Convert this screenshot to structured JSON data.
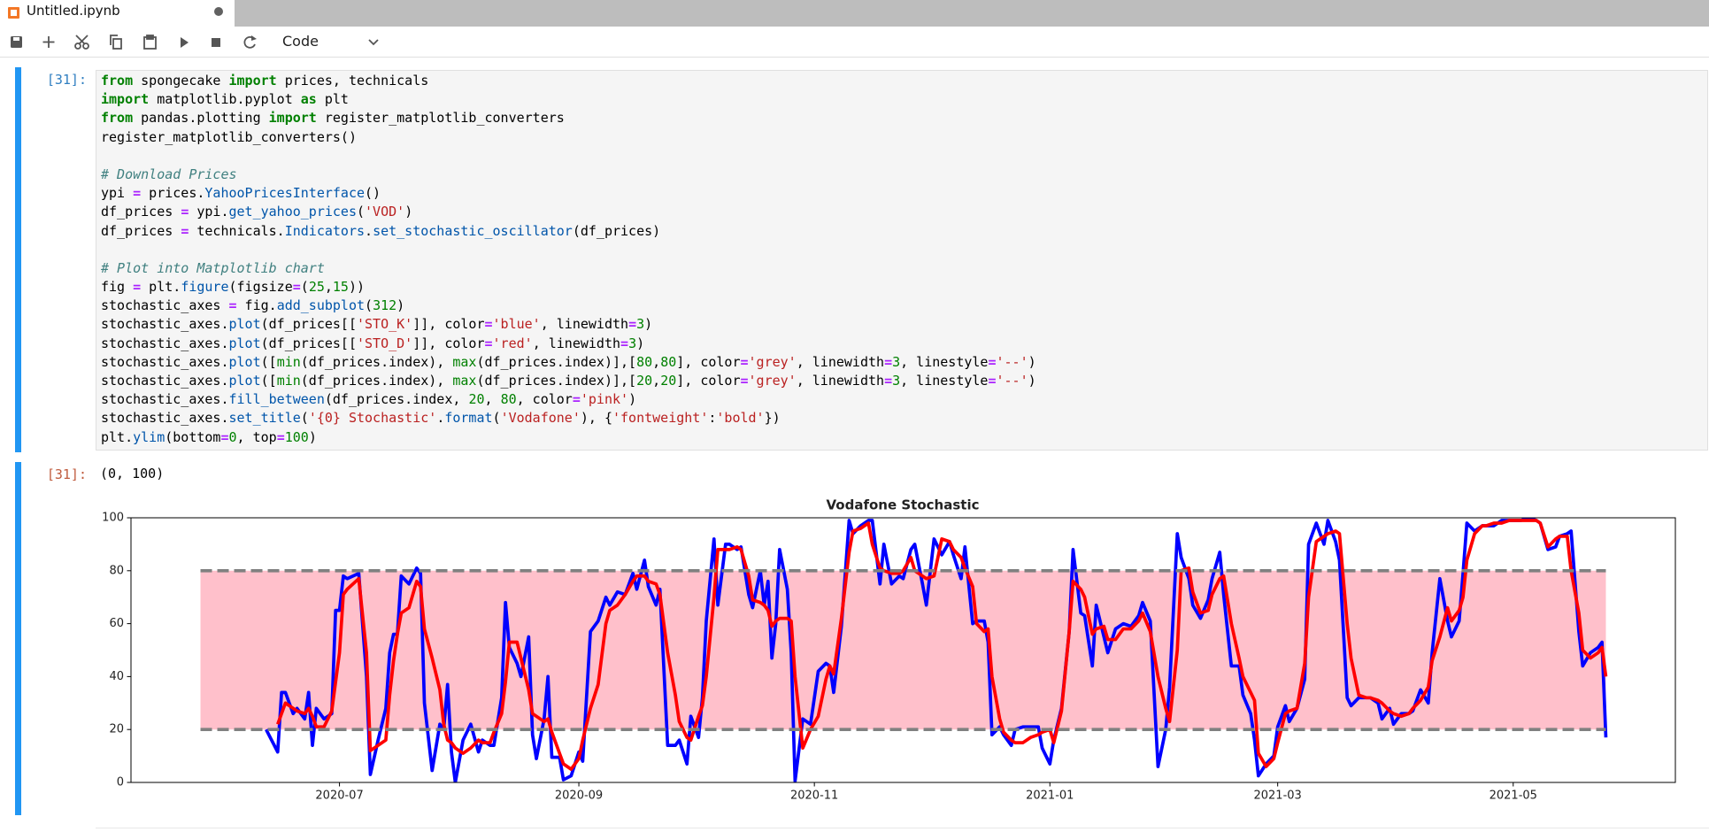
{
  "tab": {
    "title": "Untitled.ipynb"
  },
  "toolbar": {
    "cell_type": "Code"
  },
  "cell": {
    "prompt": "[31]:",
    "code": [
      [
        [
          "from",
          "k"
        ],
        [
          " spongecake ",
          "n"
        ],
        [
          "import",
          "k"
        ],
        [
          " prices, technicals",
          "n"
        ]
      ],
      [
        [
          "import",
          "k"
        ],
        [
          " matplotlib.pyplot ",
          "n"
        ],
        [
          "as",
          "k"
        ],
        [
          " plt",
          "n"
        ]
      ],
      [
        [
          "from",
          "k"
        ],
        [
          " pandas.plotting ",
          "n"
        ],
        [
          "import",
          "k"
        ],
        [
          " register_matplotlib_converters",
          "n"
        ]
      ],
      [
        [
          "register_matplotlib_converters()",
          "n"
        ]
      ],
      [],
      [
        [
          "# Download Prices",
          "c"
        ]
      ],
      [
        [
          "ypi ",
          "n"
        ],
        [
          "=",
          "o"
        ],
        [
          " prices.",
          "n"
        ],
        [
          "YahooPricesInterface",
          "f"
        ],
        [
          "()",
          "n"
        ]
      ],
      [
        [
          "df_prices ",
          "n"
        ],
        [
          "=",
          "o"
        ],
        [
          " ypi.",
          "n"
        ],
        [
          "get_yahoo_prices",
          "f"
        ],
        [
          "(",
          "n"
        ],
        [
          "'VOD'",
          "s"
        ],
        [
          ")",
          "n"
        ]
      ],
      [
        [
          "df_prices ",
          "n"
        ],
        [
          "=",
          "o"
        ],
        [
          " technicals.",
          "n"
        ],
        [
          "Indicators",
          "f"
        ],
        [
          ".",
          "n"
        ],
        [
          "set_stochastic_oscillator",
          "f"
        ],
        [
          "(df_prices)",
          "n"
        ]
      ],
      [],
      [
        [
          "# Plot into Matplotlib chart",
          "c"
        ]
      ],
      [
        [
          "fig ",
          "n"
        ],
        [
          "=",
          "o"
        ],
        [
          " plt.",
          "n"
        ],
        [
          "figure",
          "f"
        ],
        [
          "(figsize",
          "n"
        ],
        [
          "=",
          "o"
        ],
        [
          "(",
          "n"
        ],
        [
          "25",
          "m"
        ],
        [
          ",",
          "n"
        ],
        [
          "15",
          "m"
        ],
        [
          "))",
          "n"
        ]
      ],
      [
        [
          "stochastic_axes ",
          "n"
        ],
        [
          "=",
          "o"
        ],
        [
          " fig.",
          "n"
        ],
        [
          "add_subplot",
          "f"
        ],
        [
          "(",
          "n"
        ],
        [
          "312",
          "m"
        ],
        [
          ")",
          "n"
        ]
      ],
      [
        [
          "stochastic_axes.",
          "n"
        ],
        [
          "plot",
          "f"
        ],
        [
          "(df_prices[[",
          "n"
        ],
        [
          "'STO_K'",
          "s"
        ],
        [
          "]], color",
          "n"
        ],
        [
          "=",
          "o"
        ],
        [
          "'blue'",
          "s"
        ],
        [
          ", linewidth",
          "n"
        ],
        [
          "=",
          "o"
        ],
        [
          "3",
          "m"
        ],
        [
          ")",
          "n"
        ]
      ],
      [
        [
          "stochastic_axes.",
          "n"
        ],
        [
          "plot",
          "f"
        ],
        [
          "(df_prices[[",
          "n"
        ],
        [
          "'STO_D'",
          "s"
        ],
        [
          "]], color",
          "n"
        ],
        [
          "=",
          "o"
        ],
        [
          "'red'",
          "s"
        ],
        [
          ", linewidth",
          "n"
        ],
        [
          "=",
          "o"
        ],
        [
          "3",
          "m"
        ],
        [
          ")",
          "n"
        ]
      ],
      [
        [
          "stochastic_axes.",
          "n"
        ],
        [
          "plot",
          "f"
        ],
        [
          "([",
          "n"
        ],
        [
          "min",
          "b"
        ],
        [
          "(df_prices.index), ",
          "n"
        ],
        [
          "max",
          "b"
        ],
        [
          "(df_prices.index)],[",
          "n"
        ],
        [
          "80",
          "m"
        ],
        [
          ",",
          "n"
        ],
        [
          "80",
          "m"
        ],
        [
          "], color",
          "n"
        ],
        [
          "=",
          "o"
        ],
        [
          "'grey'",
          "s"
        ],
        [
          ", linewidth",
          "n"
        ],
        [
          "=",
          "o"
        ],
        [
          "3",
          "m"
        ],
        [
          ", linestyle",
          "n"
        ],
        [
          "=",
          "o"
        ],
        [
          "'--'",
          "s"
        ],
        [
          ")",
          "n"
        ]
      ],
      [
        [
          "stochastic_axes.",
          "n"
        ],
        [
          "plot",
          "f"
        ],
        [
          "([",
          "n"
        ],
        [
          "min",
          "b"
        ],
        [
          "(df_prices.index), ",
          "n"
        ],
        [
          "max",
          "b"
        ],
        [
          "(df_prices.index)],[",
          "n"
        ],
        [
          "20",
          "m"
        ],
        [
          ",",
          "n"
        ],
        [
          "20",
          "m"
        ],
        [
          "], color",
          "n"
        ],
        [
          "=",
          "o"
        ],
        [
          "'grey'",
          "s"
        ],
        [
          ", linewidth",
          "n"
        ],
        [
          "=",
          "o"
        ],
        [
          "3",
          "m"
        ],
        [
          ", linestyle",
          "n"
        ],
        [
          "=",
          "o"
        ],
        [
          "'--'",
          "s"
        ],
        [
          ")",
          "n"
        ]
      ],
      [
        [
          "stochastic_axes.",
          "n"
        ],
        [
          "fill_between",
          "f"
        ],
        [
          "(df_prices.index, ",
          "n"
        ],
        [
          "20",
          "m"
        ],
        [
          ", ",
          "n"
        ],
        [
          "80",
          "m"
        ],
        [
          ", color",
          "n"
        ],
        [
          "=",
          "o"
        ],
        [
          "'pink'",
          "s"
        ],
        [
          ")",
          "n"
        ]
      ],
      [
        [
          "stochastic_axes.",
          "n"
        ],
        [
          "set_title",
          "f"
        ],
        [
          "(",
          "n"
        ],
        [
          "'{0} Stochastic'",
          "s"
        ],
        [
          ".",
          "n"
        ],
        [
          "format",
          "f"
        ],
        [
          "(",
          "n"
        ],
        [
          "'Vodafone'",
          "s"
        ],
        [
          "), {",
          "n"
        ],
        [
          "'fontweight'",
          "s"
        ],
        [
          ":",
          "n"
        ],
        [
          "'bold'",
          "s"
        ],
        [
          "})",
          "n"
        ]
      ],
      [
        [
          "plt.",
          "n"
        ],
        [
          "ylim",
          "f"
        ],
        [
          "(bottom",
          "n"
        ],
        [
          "=",
          "o"
        ],
        [
          "0",
          "m"
        ],
        [
          ", top",
          "n"
        ],
        [
          "=",
          "o"
        ],
        [
          "100",
          "m"
        ],
        [
          ")",
          "n"
        ]
      ]
    ],
    "output_prompt": "[31]:",
    "output_text": "(0, 100)"
  },
  "chart_data": {
    "type": "line",
    "title": "Vodafone Stochastic",
    "x": [
      18425,
      18428,
      18429,
      18430,
      18432,
      18433,
      18435,
      18436,
      18437,
      18438,
      18440,
      18442,
      18443,
      18444,
      18445,
      18446,
      18449,
      18451,
      18452,
      18454,
      18456,
      18457,
      18458,
      18459,
      18460,
      18462,
      18464,
      18465,
      18466,
      18468,
      18470,
      18471,
      18472,
      18473,
      18474,
      18476,
      18478,
      18480,
      18481,
      18483,
      18484,
      18486,
      18487,
      18488,
      18490,
      18491,
      18493,
      18494,
      18495,
      18497,
      18498,
      18499,
      18501,
      18502,
      18504,
      18506,
      18507,
      18509,
      18511,
      18513,
      18514,
      18516,
      18518,
      18520,
      18521,
      18523,
      18524,
      18526,
      18527,
      18529,
      18531,
      18532,
      18534,
      18535,
      18537,
      18538,
      18539,
      18541,
      18542,
      18544,
      18545,
      18547,
      18548,
      18550,
      18551,
      18553,
      18554,
      18555,
      18556,
      18557,
      18558,
      18560,
      18561,
      18562,
      18564,
      18566,
      18568,
      18570,
      18571,
      18572,
      18574,
      18576,
      18577,
      18579,
      18581,
      18582,
      18584,
      18585,
      18587,
      18589,
      18590,
      18592,
      18593,
      18595,
      18596,
      18598,
      18600,
      18602,
      18603,
      18605,
      18606,
      18608,
      18609,
      18611,
      18612,
      18613,
      18615,
      18616,
      18618,
      18619,
      18621,
      18623,
      18625,
      18626,
      18628,
      18629,
      18631,
      18633,
      18634,
      18636,
      18637,
      18639,
      18640,
      18642,
      18643,
      18645,
      18647,
      18649,
      18651,
      18652,
      18654,
      18656,
      18658,
      18659,
      18661,
      18662,
      18664,
      18665,
      18667,
      18669,
      18670,
      18672,
      18673,
      18675,
      18677,
      18678,
      18680,
      18681,
      18682,
      18684,
      18686,
      18687,
      18689,
      18690,
      18692,
      18694,
      18695,
      18697,
      18699,
      18700,
      18702,
      18703,
      18705,
      18706,
      18708,
      18710,
      18711,
      18713,
      18714,
      18716,
      18717,
      18719,
      18721,
      18722,
      18724,
      18726,
      18727,
      18729,
      18731,
      18732,
      18734,
      18735,
      18736,
      18738,
      18740,
      18741,
      18743,
      18745,
      18747,
      18748,
      18750,
      18752,
      18754,
      18755,
      18757,
      18759,
      18760,
      18762,
      18763,
      18765,
      18766,
      18768,
      18770,
      18771,
      18772
    ],
    "series": [
      {
        "color": "blue",
        "values": [
          20,
          11.5,
          34,
          34,
          26,
          28,
          24,
          34,
          14,
          28,
          24,
          26,
          65,
          65,
          78,
          77,
          79,
          40,
          3,
          16,
          28,
          49,
          56,
          56,
          78,
          75,
          81,
          79,
          30,
          4.5,
          22,
          20,
          37,
          11.5,
          0,
          16,
          22,
          11.5,
          16,
          14,
          14,
          32,
          68,
          51,
          45,
          40,
          55,
          18,
          9,
          24,
          40,
          9.5,
          9.5,
          1,
          2.5,
          11.5,
          8,
          57,
          61,
          70,
          67,
          72,
          71,
          79,
          73,
          84,
          74,
          67,
          73,
          14,
          14,
          16,
          7,
          25,
          17,
          32,
          61,
          92,
          67,
          90,
          90,
          88,
          89,
          71,
          66,
          80,
          67,
          76,
          47,
          60,
          88,
          73,
          49,
          0.5,
          24,
          22,
          42,
          45,
          44,
          34,
          59,
          99,
          94,
          97,
          99,
          99,
          75,
          90,
          75,
          78,
          77,
          88,
          90,
          75,
          67,
          92,
          86,
          91,
          86,
          77,
          89,
          60,
          61,
          61,
          53,
          18,
          21,
          18,
          14,
          20,
          21,
          21,
          21,
          13,
          7,
          16,
          28,
          57,
          88,
          64,
          63,
          44,
          67,
          55,
          49,
          58,
          60,
          59,
          63,
          68,
          61,
          6,
          20,
          36,
          94,
          85,
          77,
          67,
          62,
          69,
          77,
          87,
          71,
          44,
          44,
          33,
          26,
          16,
          2.5,
          7,
          10,
          21,
          29,
          23,
          28,
          39,
          90,
          98,
          90,
          99,
          91,
          84,
          32,
          29,
          32,
          32,
          32,
          30,
          24,
          28,
          22,
          26,
          26,
          27,
          35,
          30,
          49,
          77,
          61,
          55,
          61,
          79,
          98,
          95,
          97,
          97,
          97,
          99,
          99,
          99,
          99,
          100,
          99,
          98,
          88,
          89,
          93,
          94,
          95,
          57,
          44,
          49,
          51,
          53,
          17
        ]
      },
      {
        "color": "red",
        "values": [
          null,
          22,
          26,
          30,
          28,
          27,
          26,
          28,
          25,
          21,
          21,
          27,
          38,
          49,
          71,
          73,
          77,
          49,
          12,
          14,
          16,
          33,
          46,
          56,
          64,
          66,
          76,
          74,
          58,
          47,
          35,
          22,
          16,
          15,
          13,
          11,
          13,
          16,
          15,
          15,
          19,
          26,
          38,
          53,
          53,
          47,
          35,
          26,
          25,
          23,
          24,
          19,
          11,
          7,
          5,
          9,
          16,
          28,
          37,
          60,
          65,
          67,
          71,
          76,
          78,
          78,
          76,
          75,
          71,
          49,
          33,
          23,
          17,
          16,
          25,
          29,
          40,
          70,
          88,
          88,
          88,
          89,
          88,
          78,
          69,
          68,
          67,
          65,
          59,
          61,
          62,
          62,
          61,
          40,
          13,
          20,
          25,
          39,
          44,
          41,
          62,
          87,
          95,
          96,
          98,
          90,
          81,
          80,
          79,
          79,
          80,
          85,
          80,
          78,
          77,
          78,
          92,
          91,
          88,
          85,
          81,
          74,
          60,
          57,
          58,
          40,
          24,
          19,
          16,
          15,
          15,
          17,
          18,
          19,
          20,
          15,
          27,
          57,
          76,
          73,
          70,
          56,
          58,
          59,
          54,
          54,
          58,
          58,
          61,
          64,
          57,
          40,
          28,
          23,
          50,
          80,
          81,
          72,
          64,
          65,
          71,
          77,
          78,
          60,
          47,
          40,
          34,
          31,
          11,
          6,
          9,
          15,
          26,
          27,
          28,
          45,
          70,
          91,
          93,
          94,
          95,
          94,
          60,
          47,
          33,
          32,
          32,
          31,
          30,
          27,
          26,
          25,
          26,
          28,
          31,
          36,
          46,
          55,
          66,
          61,
          65,
          70,
          84,
          94,
          97,
          97,
          98,
          98,
          99,
          99,
          99,
          99,
          99,
          98,
          89,
          92,
          93,
          93,
          80,
          64,
          50,
          47,
          49,
          51,
          40
        ]
      }
    ],
    "fill": {
      "x": [
        18408,
        18772
      ],
      "y1": 20,
      "y2": 80,
      "color": "pink"
    },
    "hlines": [
      {
        "x": [
          18408,
          18772
        ],
        "y": [
          80,
          80
        ],
        "color": "grey"
      },
      {
        "x": [
          18408,
          18772
        ],
        "y": [
          20,
          20
        ],
        "color": "grey"
      }
    ],
    "xlim": [
      18390,
      18790
    ],
    "ylim": [
      0,
      100
    ],
    "xticks": [
      {
        "value": 18444,
        "label": "2020-07"
      },
      {
        "value": 18506,
        "label": "2020-09"
      },
      {
        "value": 18567,
        "label": "2020-11"
      },
      {
        "value": 18628,
        "label": "2021-01"
      },
      {
        "value": 18687,
        "label": "2021-03"
      },
      {
        "value": 18748,
        "label": "2021-05"
      }
    ],
    "yticks": [
      0,
      20,
      40,
      60,
      80,
      100
    ]
  }
}
